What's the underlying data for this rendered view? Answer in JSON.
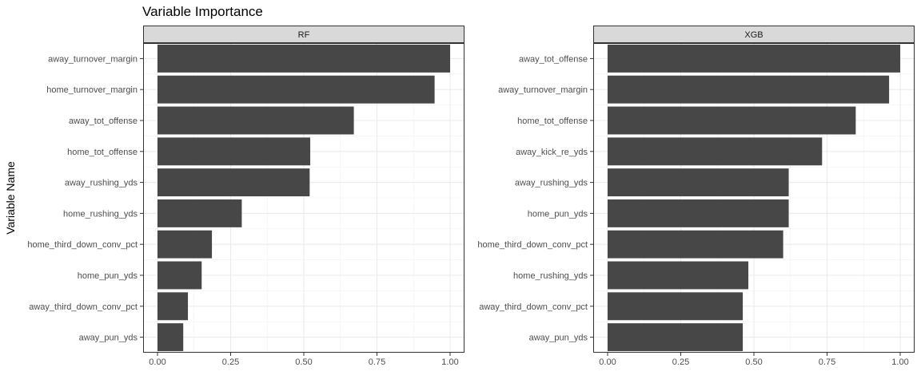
{
  "chart_data": {
    "type": "bar",
    "orientation": "horizontal",
    "title": "Variable Importance",
    "xlabel": "",
    "ylabel": "Variable Name",
    "xlim": [
      0,
      1
    ],
    "x_ticks": [
      "0.00",
      "0.25",
      "0.50",
      "0.75",
      "1.00"
    ],
    "grid": true,
    "bar_color": "#474747",
    "panels": [
      {
        "name": "RF",
        "categories": [
          "away_turnover_margin",
          "home_turnover_margin",
          "away_tot_offense",
          "home_tot_offense",
          "away_rushing_yds",
          "home_rushing_yds",
          "home_third_down_conv_pct",
          "home_pun_yds",
          "away_third_down_conv_pct",
          "away_pun_yds"
        ],
        "values": [
          1.0,
          0.947,
          0.671,
          0.522,
          0.52,
          0.288,
          0.186,
          0.151,
          0.104,
          0.088
        ]
      },
      {
        "name": "XGB",
        "categories": [
          "away_tot_offense",
          "away_turnover_margin",
          "home_tot_offense",
          "away_kick_re_yds",
          "away_rushing_yds",
          "home_pun_yds",
          "home_third_down_conv_pct",
          "home_rushing_yds",
          "away_third_down_conv_pct",
          "away_pun_yds"
        ],
        "values": [
          1.0,
          0.962,
          0.848,
          0.733,
          0.619,
          0.619,
          0.6,
          0.481,
          0.462,
          0.462
        ]
      }
    ]
  }
}
